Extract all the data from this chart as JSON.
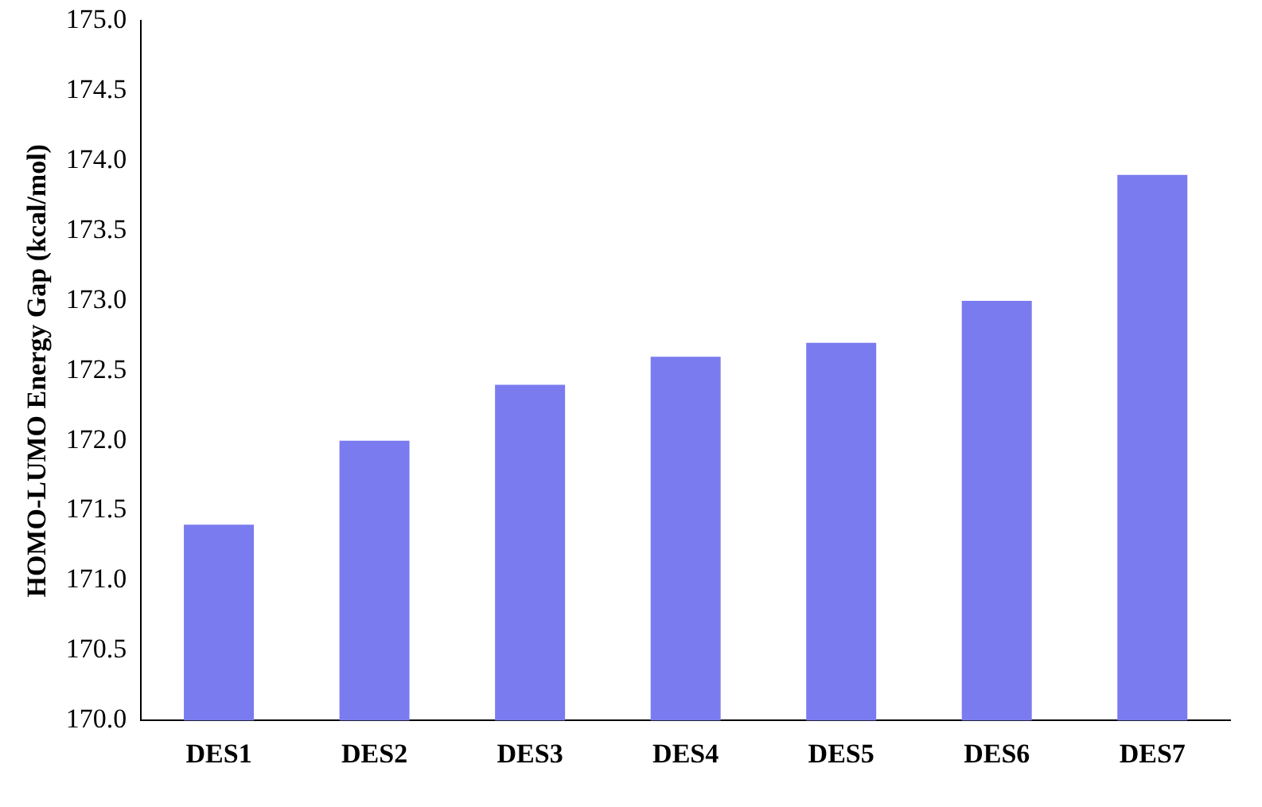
{
  "chart_data": {
    "type": "bar",
    "ylabel": "HOMO-LUMO Energy Gap (kcal/mol)",
    "categories": [
      "DES1",
      "DES2",
      "DES3",
      "DES4",
      "DES5",
      "DES6",
      "DES7"
    ],
    "values": [
      171.4,
      172.0,
      172.4,
      172.6,
      172.7,
      173.0,
      173.9
    ],
    "color": "#7b7bf0",
    "ylim": [
      170,
      175
    ],
    "yticks": [
      {
        "value": 170,
        "label": "170.0"
      },
      {
        "value": 170.5,
        "label": "170.5"
      },
      {
        "value": 171,
        "label": "171.0"
      },
      {
        "value": 171.5,
        "label": "171.5"
      },
      {
        "value": 172,
        "label": "172.0"
      },
      {
        "value": 172.5,
        "label": "172.5"
      },
      {
        "value": 173,
        "label": "173.0"
      },
      {
        "value": 173.5,
        "label": "173.5"
      },
      {
        "value": 174,
        "label": "174.0"
      },
      {
        "value": 174.5,
        "label": "174.5"
      },
      {
        "value": 175,
        "label": "175.0"
      }
    ],
    "grid": false,
    "legend": false
  }
}
